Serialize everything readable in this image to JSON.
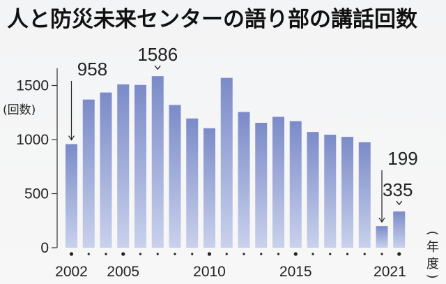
{
  "chart_data": {
    "type": "bar",
    "title": "人と防災未来センターの語り部の講話回数",
    "ylabel": "(回数)",
    "xlabel": "(年度)",
    "xlabel_chars": [
      "(",
      "年",
      "度",
      ")"
    ],
    "ylim": [
      0,
      1700
    ],
    "yticks": [
      0,
      500,
      1000,
      1500
    ],
    "ytick_labels": [
      "0",
      "500",
      "1000",
      "1500"
    ],
    "x": [
      2002,
      2003,
      2004,
      2005,
      2006,
      2007,
      2008,
      2009,
      2010,
      2011,
      2012,
      2013,
      2014,
      2015,
      2016,
      2017,
      2018,
      2019,
      2020,
      2021
    ],
    "x_tick_labels": [
      "2002",
      "2005",
      "2010",
      "2015",
      "2021"
    ],
    "values": [
      958,
      1370,
      1435,
      1510,
      1505,
      1586,
      1320,
      1195,
      1105,
      1570,
      1255,
      1155,
      1210,
      1170,
      1070,
      1045,
      1025,
      975,
      199,
      335
    ],
    "annotations": [
      {
        "year": 2002,
        "text": "958",
        "style": "arrow"
      },
      {
        "year": 2007,
        "text": "1586",
        "style": "caret"
      },
      {
        "year": 2020,
        "text": "199",
        "style": "arrow"
      },
      {
        "year": 2021,
        "text": "335",
        "style": "caret"
      }
    ],
    "bar_color_top": "#7b8bc8",
    "bar_color_bottom": "#c9d1ec",
    "grid": false,
    "legend": "none"
  }
}
